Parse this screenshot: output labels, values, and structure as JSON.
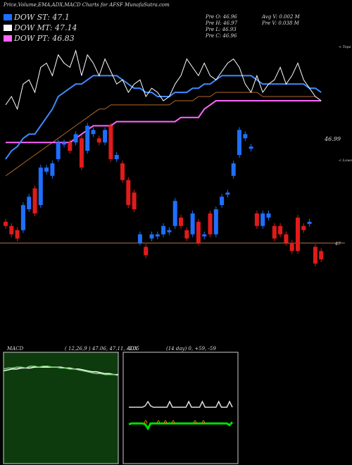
{
  "header": {
    "title": "Price,Volume,EMA,ADX,MACD Charts for AFSF MunafaSutra.com",
    "pre_open": "Pre  O: 46.96",
    "pre_high": "Pre  H: 46.97",
    "pre_low": "Pre  L: 46.93",
    "pre_close": "Pre  C: 46.96",
    "avg_volume": "Avg V: 0.002  M",
    "pre_volume": "Pre  V: 0.038  M"
  },
  "legend": [
    {
      "label": "DOW ST: 47.1",
      "color": "#1e6fff"
    },
    {
      "label": "DOW MT: 47.14",
      "color": "#ffffff"
    },
    {
      "label": "DOW PT: 46.83",
      "color": "#ff66ff"
    }
  ],
  "side_labels": {
    "top": "< Tops",
    "lows": "< Lows"
  },
  "colors": {
    "up": "#1e6fff",
    "down": "#e01b1b",
    "ema_short": "#3e8bff",
    "ema_long": "#b06a2a",
    "pt": "#ff66ff",
    "hline": "#b4734a",
    "macd_bg": "#0e3b0e",
    "adx_green": "#00dd00"
  },
  "chart_data": [
    {
      "type": "candlestick",
      "title": "Price",
      "last_price_label": "46.99",
      "hline_label": "47",
      "candles": [
        [
          47.5,
          47.4
        ],
        [
          47.4,
          47.2
        ],
        [
          47.3,
          47.1
        ],
        [
          47.3,
          47.9
        ],
        [
          47.8,
          48.1
        ],
        [
          48.3,
          47.7
        ],
        [
          47.9,
          48.8
        ],
        [
          48.7,
          48.8
        ],
        [
          48.6,
          48.9
        ],
        [
          49.0,
          49.4
        ],
        [
          49.4,
          49.4
        ],
        [
          49.4,
          49.2
        ],
        [
          49.4,
          49.6
        ],
        [
          49.5,
          48.8
        ],
        [
          49.2,
          49.8
        ],
        [
          49.6,
          49.7
        ],
        [
          49.5,
          49.4
        ],
        [
          49.4,
          49.7
        ],
        [
          49.8,
          49.0
        ],
        [
          49.0,
          49.1
        ],
        [
          48.9,
          48.5
        ],
        [
          48.5,
          47.9
        ],
        [
          48.2,
          47.8
        ],
        [
          47.0,
          47.2
        ],
        [
          46.9,
          46.7
        ],
        [
          47.1,
          47.2
        ],
        [
          47.2,
          47.2
        ],
        [
          47.2,
          47.4
        ],
        [
          47.3,
          47.3
        ],
        [
          47.4,
          48.0
        ],
        [
          47.6,
          47.4
        ],
        [
          47.3,
          47.1
        ],
        [
          47.2,
          47.7
        ],
        [
          47.5,
          47.0
        ],
        [
          47.2,
          47.2
        ],
        [
          47.7,
          47.2
        ],
        [
          47.2,
          47.8
        ],
        [
          47.9,
          48.1
        ],
        [
          48.2,
          48.2
        ],
        [
          48.6,
          48.9
        ],
        [
          49.1,
          49.7
        ],
        [
          49.5,
          49.6
        ],
        [
          49.3,
          49.3
        ],
        [
          47.7,
          47.4
        ],
        [
          47.4,
          47.7
        ],
        [
          47.6,
          47.7
        ],
        [
          47.4,
          47.1
        ],
        [
          47.4,
          47.2
        ],
        [
          47.2,
          47.0
        ],
        [
          47.0,
          46.8
        ],
        [
          47.6,
          46.8
        ],
        [
          47.4,
          47.3
        ],
        [
          47.5,
          47.5
        ],
        [
          46.9,
          46.5
        ],
        [
          46.8,
          46.6
        ]
      ],
      "ema_short": [
        49.0,
        49.2,
        49.3,
        49.5,
        49.6,
        49.6,
        49.8,
        50.0,
        50.2,
        50.5,
        50.6,
        50.7,
        50.8,
        50.8,
        50.9,
        51.0,
        51.0,
        51.0,
        51.0,
        51.0,
        50.9,
        50.8,
        50.7,
        50.7,
        50.6,
        50.6,
        50.5,
        50.5,
        50.5,
        50.6,
        50.6,
        50.6,
        50.7,
        50.7,
        50.8,
        50.8,
        50.9,
        51.0,
        51.0,
        51.0,
        51.0,
        51.0,
        51.0,
        50.9,
        50.8,
        50.8,
        50.8,
        50.8,
        50.8,
        50.8,
        50.8,
        50.8,
        50.7,
        50.7,
        50.6
      ],
      "ema_long": [
        48.6,
        48.7,
        48.8,
        48.9,
        49.0,
        49.1,
        49.2,
        49.3,
        49.4,
        49.5,
        49.6,
        49.7,
        49.8,
        49.9,
        50.0,
        50.1,
        50.2,
        50.2,
        50.3,
        50.3,
        50.3,
        50.3,
        50.3,
        50.3,
        50.3,
        50.3,
        50.3,
        50.3,
        50.3,
        50.4,
        50.4,
        50.4,
        50.4,
        50.5,
        50.5,
        50.5,
        50.6,
        50.6,
        50.6,
        50.6,
        50.6,
        50.6,
        50.6,
        50.6,
        50.5,
        50.5,
        50.5,
        50.5,
        50.5,
        50.5,
        50.5,
        50.5,
        50.5,
        50.5,
        50.4
      ],
      "pt_line": [
        49.4,
        49.4,
        49.4,
        49.4,
        49.4,
        49.4,
        49.4,
        49.4,
        49.4,
        49.4,
        49.4,
        49.4,
        49.5,
        49.6,
        49.7,
        49.8,
        49.8,
        49.8,
        49.8,
        49.9,
        49.9,
        49.9,
        49.9,
        49.9,
        49.9,
        49.9,
        49.9,
        49.9,
        49.9,
        49.9,
        50.0,
        50.0,
        50.0,
        50.0,
        50.2,
        50.3,
        50.4,
        50.4,
        50.4,
        50.4,
        50.4,
        50.4,
        50.4,
        50.4,
        50.4,
        50.4,
        50.4,
        50.4,
        50.4,
        50.4,
        50.4,
        50.4,
        50.4,
        50.4,
        50.4
      ],
      "close_line": [
        50.3,
        50.5,
        50.2,
        50.8,
        50.9,
        50.6,
        51.2,
        51.3,
        51.0,
        51.5,
        51.3,
        51.2,
        51.6,
        51.0,
        51.5,
        51.3,
        51.0,
        51.4,
        51.1,
        50.8,
        50.9,
        50.6,
        50.8,
        50.9,
        50.5,
        50.7,
        50.6,
        50.4,
        50.5,
        50.8,
        51.0,
        51.4,
        51.2,
        51.0,
        51.3,
        51.0,
        50.9,
        51.1,
        51.3,
        51.4,
        51.2,
        50.8,
        50.6,
        51.0,
        50.6,
        50.8,
        50.9,
        51.2,
        50.8,
        51.0,
        51.3,
        50.9,
        50.7,
        50.5,
        50.4
      ],
      "ylim": [
        46.4,
        51.8
      ]
    },
    {
      "type": "line",
      "title": "MACD",
      "params": "( 12,26,9 ) 47.06, 47.11, -0.05",
      "macd": [
        0.02,
        0.03,
        0.03,
        0.04,
        0.04,
        0.03,
        0.05,
        0.05,
        0.04,
        0.05,
        0.05,
        0.04,
        0.04,
        0.03,
        0.03,
        0.02,
        0.02,
        0.01,
        0.0,
        -0.01,
        -0.02,
        -0.03,
        -0.03,
        -0.04,
        -0.04,
        -0.04,
        -0.05
      ],
      "signal": [
        0.0,
        0.01,
        0.02,
        0.02,
        0.03,
        0.03,
        0.03,
        0.04,
        0.04,
        0.04,
        0.04,
        0.04,
        0.04,
        0.04,
        0.03,
        0.03,
        0.02,
        0.02,
        0.01,
        0.0,
        -0.01,
        -0.01,
        -0.02,
        -0.03,
        -0.03,
        -0.04,
        -0.04
      ],
      "ylim": [
        -1.0,
        0.2
      ]
    },
    {
      "type": "line",
      "title": "ADX",
      "params": "(14  day) 0, +59, -59",
      "adx": [
        8,
        8,
        8,
        8,
        8,
        8,
        9,
        12,
        9,
        8,
        8,
        8,
        8,
        8,
        8,
        12,
        8,
        8,
        8,
        8,
        8,
        8,
        12,
        8,
        8,
        8,
        8,
        12,
        8,
        8,
        8,
        8,
        8,
        12,
        8,
        8,
        8,
        12,
        8
      ],
      "plus_di": [
        40,
        42,
        42,
        42,
        42,
        42,
        40,
        30,
        42,
        42,
        42,
        42,
        42,
        42,
        42,
        42,
        42,
        42,
        42,
        42,
        42,
        42,
        42,
        42,
        42,
        42,
        42,
        42,
        42,
        42,
        42,
        42,
        42,
        42,
        42,
        42,
        42,
        38,
        45
      ],
      "ylim": [
        0,
        100
      ]
    }
  ]
}
